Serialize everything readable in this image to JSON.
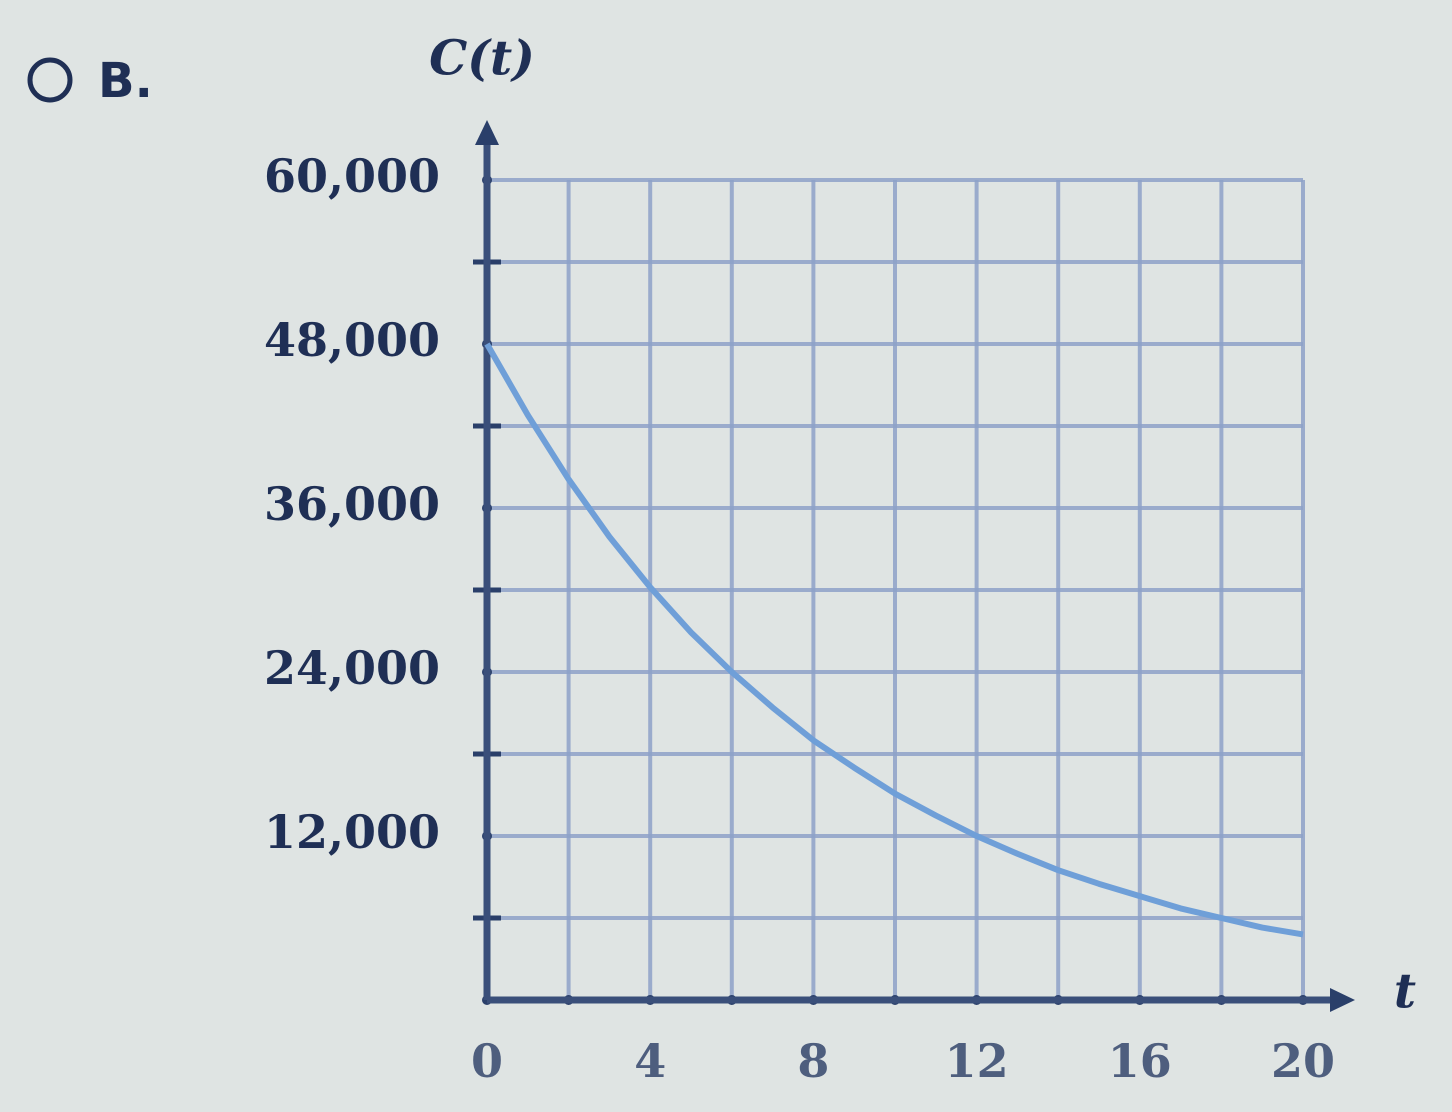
{
  "option_label": "B.",
  "chart_data": {
    "type": "line",
    "y_label": "C(t)",
    "x_label": "t",
    "x": [
      0,
      1,
      2,
      3,
      4,
      5,
      6,
      7,
      8,
      9,
      10,
      11,
      12,
      13,
      14,
      15,
      16,
      17,
      18,
      19,
      20
    ],
    "series": [
      {
        "color": "#6f9fd8",
        "values": [
          48000,
          42800,
          38100,
          33900,
          30200,
          26900,
          24000,
          21400,
          19000,
          17000,
          15100,
          13500,
          12000,
          10700,
          9500,
          8500,
          7600,
          6700,
          6000,
          5300,
          4800
        ]
      }
    ],
    "xlim": [
      0,
      20
    ],
    "xticks": [
      0,
      4,
      8,
      12,
      16,
      20
    ],
    "ylim": [
      0,
      60000
    ],
    "yticks": [
      {
        "value": 12000,
        "label": "12,000"
      },
      {
        "value": 24000,
        "label": "24,000"
      },
      {
        "value": 36000,
        "label": "36,000"
      },
      {
        "value": 48000,
        "label": "48,000"
      },
      {
        "value": 60000,
        "label": "60,000"
      }
    ],
    "grid": true
  }
}
